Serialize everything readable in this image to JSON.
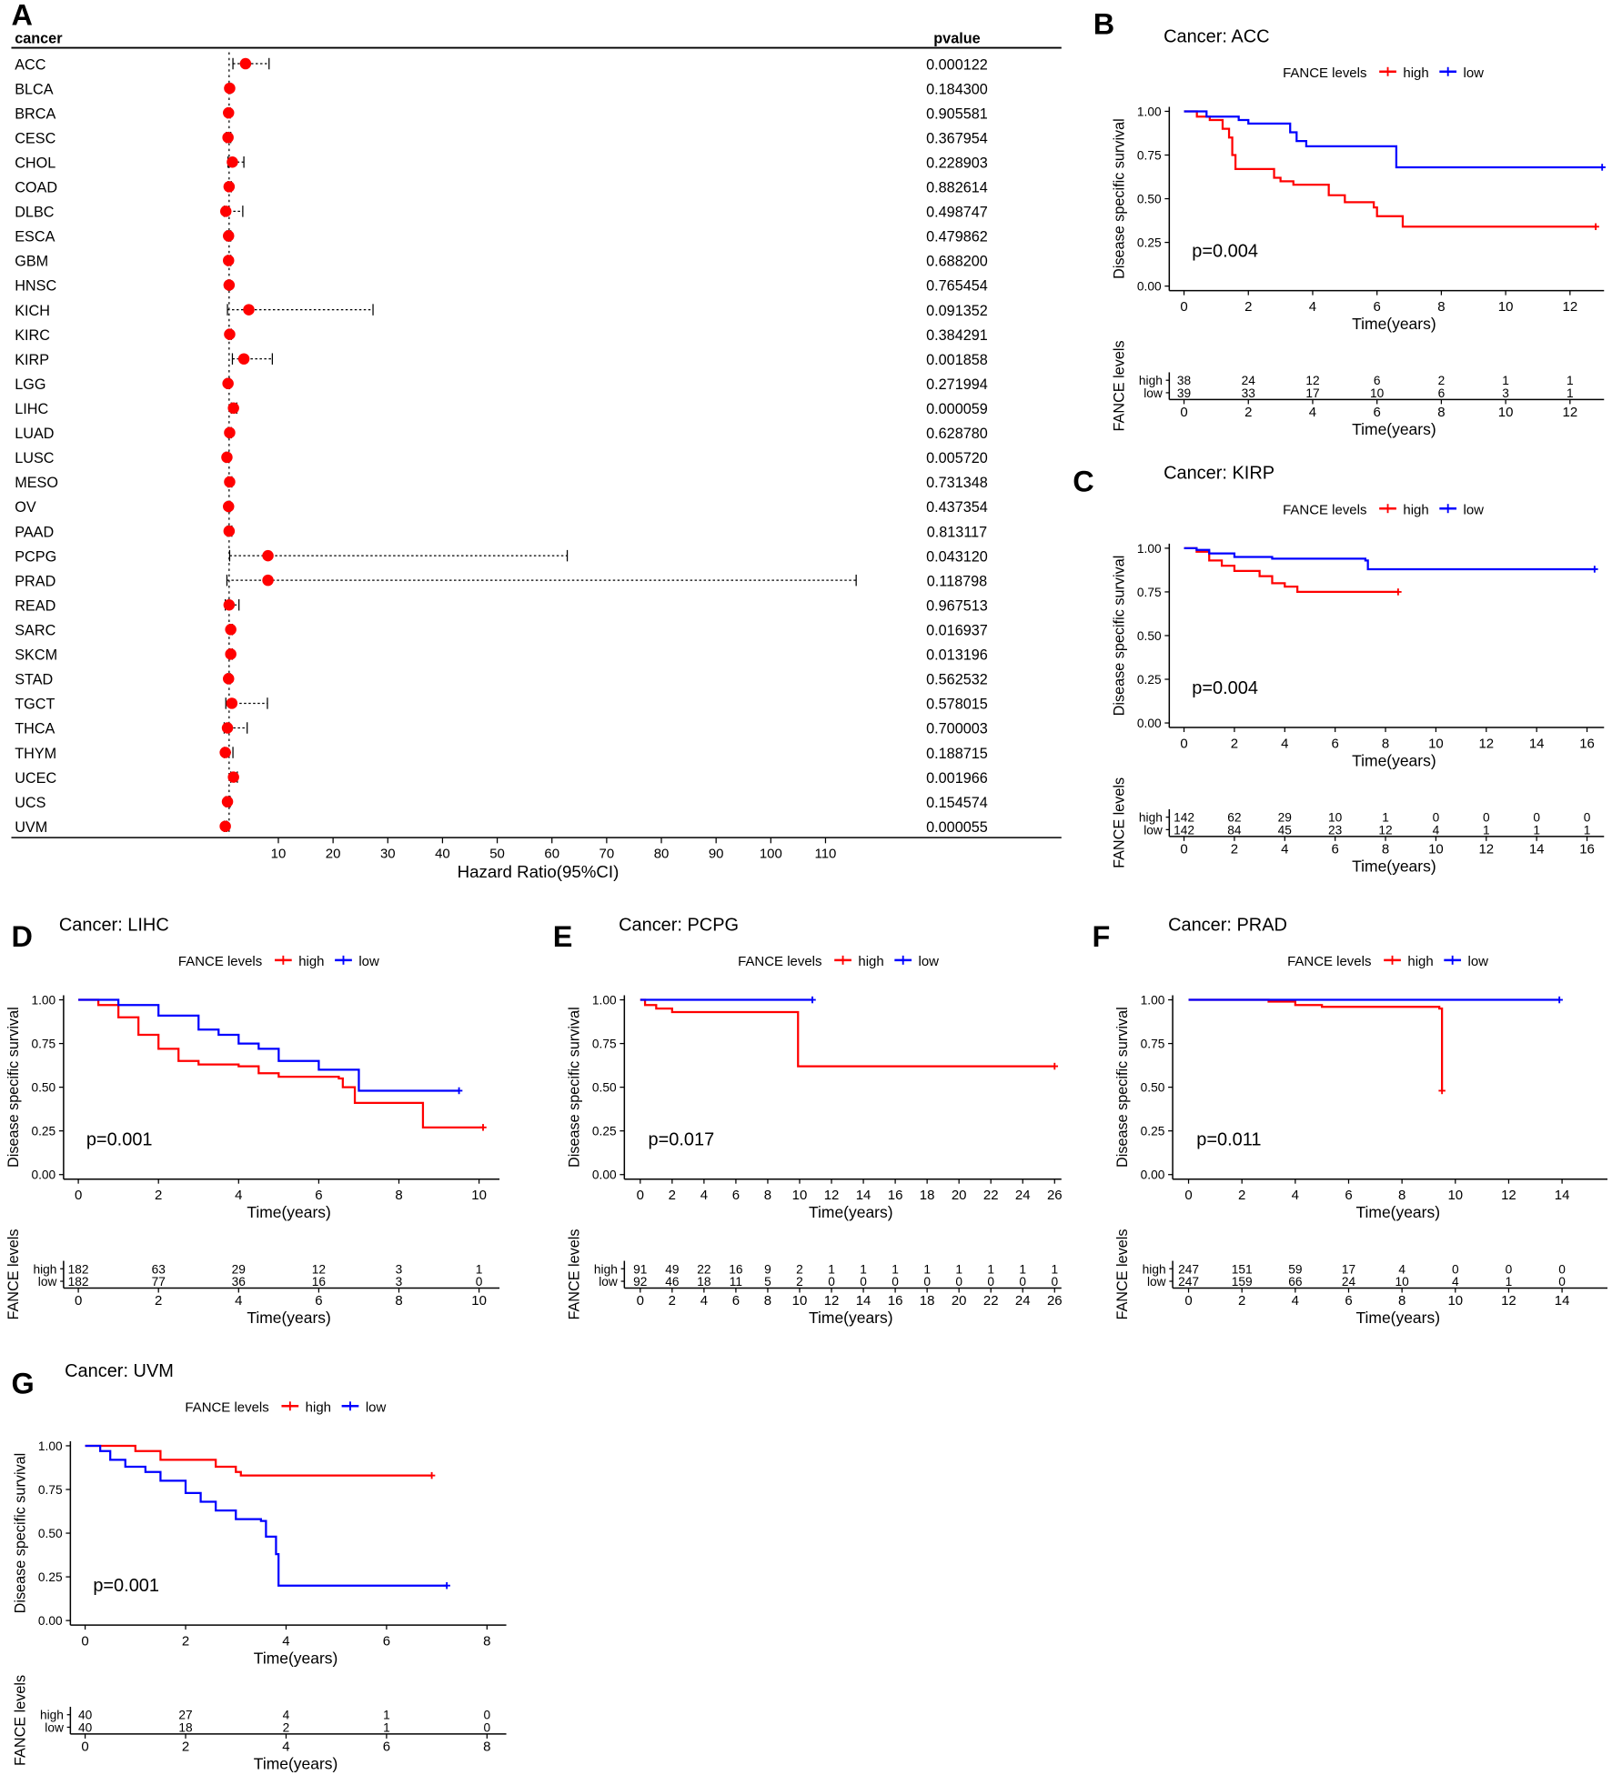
{
  "panel_labels": [
    "A",
    "B",
    "C",
    "D",
    "E",
    "F",
    "G"
  ],
  "chart_data": [
    {
      "type": "forest",
      "col_headers": {
        "cancer": "cancer",
        "pvalue": "pvalue"
      },
      "xlabel": "Hazard Ratio(95%CI)",
      "xticks": [
        "10",
        "20",
        "30",
        "40",
        "50",
        "60",
        "70",
        "80",
        "90",
        "100",
        "110"
      ],
      "reference_line": 1,
      "point_color": "#FF0000",
      "rows": [
        {
          "cancer": "ACC",
          "hr": 4.0,
          "lower": 1.7,
          "upper": 8.3,
          "pvalue": "0.000122"
        },
        {
          "cancer": "BLCA",
          "hr": 1.1,
          "lower": 1.0,
          "upper": 1.3,
          "pvalue": "0.184300"
        },
        {
          "cancer": "BRCA",
          "hr": 0.9,
          "lower": 0.7,
          "upper": 1.2,
          "pvalue": "0.905581"
        },
        {
          "cancer": "CESC",
          "hr": 0.8,
          "lower": 0.5,
          "upper": 1.3,
          "pvalue": "0.367954"
        },
        {
          "cancer": "CHOL",
          "hr": 1.6,
          "lower": 0.8,
          "upper": 3.7,
          "pvalue": "0.228903"
        },
        {
          "cancer": "COAD",
          "hr": 1.0,
          "lower": 0.8,
          "upper": 1.4,
          "pvalue": "0.882614"
        },
        {
          "cancer": "DLBC",
          "hr": 0.4,
          "lower": 0.1,
          "upper": 3.5,
          "pvalue": "0.498747"
        },
        {
          "cancer": "ESCA",
          "hr": 0.9,
          "lower": 0.6,
          "upper": 1.3,
          "pvalue": "0.479862"
        },
        {
          "cancer": "GBM",
          "hr": 0.9,
          "lower": 0.7,
          "upper": 1.3,
          "pvalue": "0.688200"
        },
        {
          "cancer": "HNSC",
          "hr": 1.0,
          "lower": 0.8,
          "upper": 1.2,
          "pvalue": "0.765454"
        },
        {
          "cancer": "KICH",
          "hr": 4.6,
          "lower": 0.7,
          "upper": 27.3,
          "pvalue": "0.091352"
        },
        {
          "cancer": "KIRC",
          "hr": 1.1,
          "lower": 0.9,
          "upper": 1.4,
          "pvalue": "0.384291"
        },
        {
          "cancer": "KIRP",
          "hr": 3.7,
          "lower": 1.6,
          "upper": 8.9,
          "pvalue": "0.001858"
        },
        {
          "cancer": "LGG",
          "hr": 0.8,
          "lower": 0.6,
          "upper": 1.1,
          "pvalue": "0.271994"
        },
        {
          "cancer": "LIHC",
          "hr": 1.8,
          "lower": 1.4,
          "upper": 2.4,
          "pvalue": "0.000059"
        },
        {
          "cancer": "LUAD",
          "hr": 1.1,
          "lower": 0.8,
          "upper": 1.4,
          "pvalue": "0.628780"
        },
        {
          "cancer": "LUSC",
          "hr": 0.6,
          "lower": 0.4,
          "upper": 0.9,
          "pvalue": "0.005720"
        },
        {
          "cancer": "MESO",
          "hr": 1.1,
          "lower": 0.8,
          "upper": 1.5,
          "pvalue": "0.731348"
        },
        {
          "cancer": "OV",
          "hr": 0.9,
          "lower": 0.7,
          "upper": 1.2,
          "pvalue": "0.437354"
        },
        {
          "cancer": "PAAD",
          "hr": 1.0,
          "lower": 0.7,
          "upper": 1.5,
          "pvalue": "0.813117"
        },
        {
          "cancer": "PCPG",
          "hr": 8.1,
          "lower": 1.1,
          "upper": 62.8,
          "pvalue": "0.043120"
        },
        {
          "cancer": "PRAD",
          "hr": 8.1,
          "lower": 0.6,
          "upper": 115.6,
          "pvalue": "0.118798"
        },
        {
          "cancer": "READ",
          "hr": 1.0,
          "lower": 0.3,
          "upper": 2.8,
          "pvalue": "0.967513"
        },
        {
          "cancer": "SARC",
          "hr": 1.3,
          "lower": 1.1,
          "upper": 1.6,
          "pvalue": "0.016937"
        },
        {
          "cancer": "SKCM",
          "hr": 1.3,
          "lower": 1.1,
          "upper": 1.6,
          "pvalue": "0.013196"
        },
        {
          "cancer": "STAD",
          "hr": 0.9,
          "lower": 0.7,
          "upper": 1.2,
          "pvalue": "0.562532"
        },
        {
          "cancer": "TGCT",
          "hr": 1.5,
          "lower": 0.4,
          "upper": 8.0,
          "pvalue": "0.578015"
        },
        {
          "cancer": "THCA",
          "hr": 0.7,
          "lower": 0.1,
          "upper": 4.3,
          "pvalue": "0.700003"
        },
        {
          "cancer": "THYM",
          "hr": 0.3,
          "lower": 0.1,
          "upper": 1.7,
          "pvalue": "0.188715"
        },
        {
          "cancer": "UCEC",
          "hr": 1.8,
          "lower": 1.3,
          "upper": 2.5,
          "pvalue": "0.001966"
        },
        {
          "cancer": "UCS",
          "hr": 0.7,
          "lower": 0.4,
          "upper": 1.2,
          "pvalue": "0.154574"
        },
        {
          "cancer": "UVM",
          "hr": 0.3,
          "lower": 0.1,
          "upper": 0.6,
          "pvalue": "0.000055"
        }
      ]
    },
    {
      "type": "line",
      "title": "Cancer: ACC",
      "legend_title": "FANCE levels",
      "ylabel": "Disease specific survival",
      "xlabel": "Time(years)",
      "pvalue_text": "p=0.004",
      "xmax": 12,
      "xticks": [
        "0",
        "2",
        "4",
        "6",
        "8",
        "10",
        "12"
      ],
      "yticks": [
        "0.00",
        "0.25",
        "0.50",
        "0.75",
        "1.00"
      ],
      "series": [
        {
          "name": "high",
          "color": "#FF0000",
          "points": [
            [
              0,
              1
            ],
            [
              0.4,
              0.97
            ],
            [
              0.8,
              0.95
            ],
            [
              1.2,
              0.9
            ],
            [
              1.4,
              0.85
            ],
            [
              1.5,
              0.75
            ],
            [
              1.6,
              0.67
            ],
            [
              2.7,
              0.67
            ],
            [
              2.8,
              0.62
            ],
            [
              3.0,
              0.6
            ],
            [
              3.4,
              0.58
            ],
            [
              4.4,
              0.58
            ],
            [
              4.5,
              0.52
            ],
            [
              5.0,
              0.48
            ],
            [
              5.8,
              0.48
            ],
            [
              5.9,
              0.45
            ],
            [
              6.0,
              0.4
            ],
            [
              6.7,
              0.4
            ],
            [
              6.8,
              0.34
            ],
            [
              12.8,
              0.34
            ]
          ]
        },
        {
          "name": "low",
          "color": "#0000FF",
          "points": [
            [
              0,
              1
            ],
            [
              0.6,
              1
            ],
            [
              0.7,
              0.97
            ],
            [
              1.7,
              0.95
            ],
            [
              2.0,
              0.93
            ],
            [
              3.2,
              0.93
            ],
            [
              3.3,
              0.88
            ],
            [
              3.5,
              0.83
            ],
            [
              3.8,
              0.8
            ],
            [
              6.5,
              0.8
            ],
            [
              6.6,
              0.68
            ],
            [
              13,
              0.68
            ]
          ]
        }
      ],
      "risk_table": {
        "ylabel": "FANCE levels",
        "high": [
          "38",
          "24",
          "12",
          "6",
          "2",
          "1",
          "1"
        ],
        "low": [
          "39",
          "33",
          "17",
          "10",
          "6",
          "3",
          "1"
        ]
      }
    },
    {
      "type": "line",
      "title": "Cancer: KIRP",
      "legend_title": "FANCE levels",
      "ylabel": "Disease specific survival",
      "xlabel": "Time(years)",
      "pvalue_text": "p=0.004",
      "xmax": 16,
      "xticks": [
        "0",
        "2",
        "4",
        "6",
        "8",
        "10",
        "12",
        "14",
        "16"
      ],
      "yticks": [
        "0.00",
        "0.25",
        "0.50",
        "0.75",
        "1.00"
      ],
      "series": [
        {
          "name": "high",
          "color": "#FF0000",
          "points": [
            [
              0,
              1
            ],
            [
              0.5,
              0.98
            ],
            [
              1,
              0.93
            ],
            [
              1.5,
              0.9
            ],
            [
              2,
              0.87
            ],
            [
              3,
              0.84
            ],
            [
              3.5,
              0.8
            ],
            [
              4,
              0.78
            ],
            [
              4.5,
              0.75
            ],
            [
              8.5,
              0.75
            ]
          ]
        },
        {
          "name": "low",
          "color": "#0000FF",
          "points": [
            [
              0,
              1
            ],
            [
              0.5,
              0.99
            ],
            [
              1,
              0.97
            ],
            [
              2,
              0.95
            ],
            [
              3.5,
              0.94
            ],
            [
              7.2,
              0.93
            ],
            [
              7.3,
              0.88
            ],
            [
              16.3,
              0.88
            ]
          ]
        }
      ],
      "risk_table": {
        "ylabel": "FANCE levels",
        "high": [
          "142",
          "62",
          "29",
          "10",
          "1",
          "0",
          "0",
          "0",
          "0"
        ],
        "low": [
          "142",
          "84",
          "45",
          "23",
          "12",
          "4",
          "1",
          "1",
          "1"
        ]
      }
    },
    {
      "type": "line",
      "title": "Cancer: LIHC",
      "legend_title": "FANCE levels",
      "ylabel": "Disease specific survival",
      "xlabel": "Time(years)",
      "pvalue_text": "p=0.001",
      "xmax": 10,
      "xticks": [
        "0",
        "2",
        "4",
        "6",
        "8",
        "10"
      ],
      "yticks": [
        "0.00",
        "0.25",
        "0.50",
        "0.75",
        "1.00"
      ],
      "series": [
        {
          "name": "high",
          "color": "#FF0000",
          "points": [
            [
              0,
              1
            ],
            [
              0.5,
              0.97
            ],
            [
              1,
              0.9
            ],
            [
              1.5,
              0.8
            ],
            [
              2,
              0.72
            ],
            [
              2.5,
              0.65
            ],
            [
              3,
              0.63
            ],
            [
              4,
              0.62
            ],
            [
              4.5,
              0.58
            ],
            [
              5,
              0.56
            ],
            [
              6.5,
              0.55
            ],
            [
              6.6,
              0.5
            ],
            [
              6.9,
              0.41
            ],
            [
              8.5,
              0.41
            ],
            [
              8.6,
              0.27
            ],
            [
              10.1,
              0.27
            ]
          ]
        },
        {
          "name": "low",
          "color": "#0000FF",
          "points": [
            [
              0,
              1
            ],
            [
              1,
              0.97
            ],
            [
              2,
              0.91
            ],
            [
              3,
              0.83
            ],
            [
              3.5,
              0.8
            ],
            [
              4,
              0.75
            ],
            [
              4.5,
              0.72
            ],
            [
              5,
              0.65
            ],
            [
              6,
              0.6
            ],
            [
              6.9,
              0.6
            ],
            [
              7,
              0.48
            ],
            [
              9.5,
              0.48
            ]
          ]
        }
      ],
      "risk_table": {
        "ylabel": "FANCE levels",
        "high": [
          "182",
          "63",
          "29",
          "12",
          "3",
          "1"
        ],
        "low": [
          "182",
          "77",
          "36",
          "16",
          "3",
          "0"
        ]
      }
    },
    {
      "type": "line",
      "title": "Cancer: PCPG",
      "legend_title": "FANCE levels",
      "ylabel": "Disease specific survival",
      "xlabel": "Time(years)",
      "pvalue_text": "p=0.017",
      "xmax": 26,
      "xticks": [
        "0",
        "2",
        "4",
        "6",
        "8",
        "10",
        "12",
        "14",
        "16",
        "18",
        "20",
        "22",
        "24",
        "26"
      ],
      "yticks": [
        "0.00",
        "0.25",
        "0.50",
        "0.75",
        "1.00"
      ],
      "series": [
        {
          "name": "high",
          "color": "#FF0000",
          "points": [
            [
              0,
              1
            ],
            [
              0.3,
              0.97
            ],
            [
              1,
              0.95
            ],
            [
              2,
              0.93
            ],
            [
              9.8,
              0.93
            ],
            [
              9.9,
              0.62
            ],
            [
              26,
              0.62
            ]
          ]
        },
        {
          "name": "low",
          "color": "#0000FF",
          "points": [
            [
              0,
              1
            ],
            [
              10.8,
              1
            ]
          ]
        }
      ],
      "risk_table": {
        "ylabel": "FANCE levels",
        "high": [
          "91",
          "49",
          "22",
          "16",
          "9",
          "2",
          "1",
          "1",
          "1",
          "1",
          "1",
          "1",
          "1",
          "1"
        ],
        "low": [
          "92",
          "46",
          "18",
          "11",
          "5",
          "2",
          "0",
          "0",
          "0",
          "0",
          "0",
          "0",
          "0",
          "0"
        ]
      }
    },
    {
      "type": "line",
      "title": "Cancer: PRAD",
      "legend_title": "FANCE levels",
      "ylabel": "Disease specific survival",
      "xlabel": "Time(years)",
      "pvalue_text": "p=0.011",
      "xmax": 14,
      "xticks": [
        "0",
        "2",
        "4",
        "6",
        "8",
        "10",
        "12",
        "14"
      ],
      "yticks": [
        "0.00",
        "0.25",
        "0.50",
        "0.75",
        "1.00"
      ],
      "series": [
        {
          "name": "high",
          "color": "#FF0000",
          "points": [
            [
              0,
              1
            ],
            [
              3,
              0.99
            ],
            [
              4,
              0.97
            ],
            [
              5,
              0.96
            ],
            [
              9.4,
              0.95
            ],
            [
              9.5,
              0.48
            ]
          ]
        },
        {
          "name": "low",
          "color": "#0000FF",
          "points": [
            [
              0,
              1
            ],
            [
              13.9,
              1
            ]
          ]
        }
      ],
      "risk_table": {
        "ylabel": "FANCE levels",
        "high": [
          "247",
          "151",
          "59",
          "17",
          "4",
          "0",
          "0",
          "0"
        ],
        "low": [
          "247",
          "159",
          "66",
          "24",
          "10",
          "4",
          "1",
          "0"
        ]
      }
    },
    {
      "type": "line",
      "title": "Cancer: UVM",
      "legend_title": "FANCE levels",
      "ylabel": "Disease specific survival",
      "xlabel": "Time(years)",
      "pvalue_text": "p=0.001",
      "xmax": 8,
      "xticks": [
        "0",
        "2",
        "4",
        "6",
        "8"
      ],
      "yticks": [
        "0.00",
        "0.25",
        "0.50",
        "0.75",
        "1.00"
      ],
      "series": [
        {
          "name": "high",
          "color": "#FF0000",
          "points": [
            [
              0,
              1
            ],
            [
              1,
              0.97
            ],
            [
              1.5,
              0.92
            ],
            [
              2.5,
              0.92
            ],
            [
              2.6,
              0.88
            ],
            [
              3.0,
              0.85
            ],
            [
              3.1,
              0.83
            ],
            [
              6.9,
              0.83
            ]
          ]
        },
        {
          "name": "low",
          "color": "#0000FF",
          "points": [
            [
              0,
              1
            ],
            [
              0.3,
              0.97
            ],
            [
              0.5,
              0.92
            ],
            [
              0.8,
              0.88
            ],
            [
              1.2,
              0.85
            ],
            [
              1.5,
              0.8
            ],
            [
              2,
              0.73
            ],
            [
              2.3,
              0.68
            ],
            [
              2.6,
              0.63
            ],
            [
              3,
              0.58
            ],
            [
              3.5,
              0.57
            ],
            [
              3.6,
              0.48
            ],
            [
              3.8,
              0.38
            ],
            [
              3.85,
              0.2
            ],
            [
              7.2,
              0.2
            ]
          ]
        }
      ],
      "risk_table": {
        "ylabel": "FANCE levels",
        "high": [
          "40",
          "27",
          "4",
          "1",
          "0"
        ],
        "low": [
          "40",
          "18",
          "2",
          "1",
          "0"
        ]
      }
    }
  ]
}
